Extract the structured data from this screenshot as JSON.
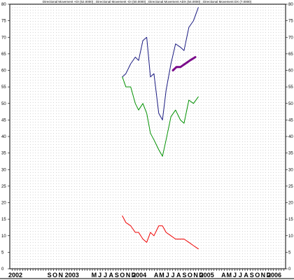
{
  "chart_data": {
    "type": "line",
    "legend": "Directional Movement +DI (52.0000) ; Directional Movement -DI (50.0000) ; Directional Movement ADX (54.0000) ; Directional Movement DX (7.0000)",
    "ylim": [
      0,
      80
    ],
    "y_ticks": [
      0,
      5,
      10,
      15,
      20,
      25,
      30,
      35,
      40,
      45,
      50,
      55,
      60,
      65,
      70,
      75,
      80
    ],
    "grid": "dotted vertical",
    "x_labels": [
      {
        "text": "2002",
        "x": "2002-03"
      },
      {
        "text": "S",
        "x": "2002-09"
      },
      {
        "text": "O",
        "x": "2002-10"
      },
      {
        "text": "N",
        "x": "2002-11"
      },
      {
        "text": "2003",
        "x": "2003-01"
      },
      {
        "text": "M",
        "x": "2003-05"
      },
      {
        "text": "J",
        "x": "2003-06"
      },
      {
        "text": "J",
        "x": "2003-07"
      },
      {
        "text": "A",
        "x": "2003-08"
      },
      {
        "text": "S",
        "x": "2003-09"
      },
      {
        "text": "O",
        "x": "2003-10"
      },
      {
        "text": "N",
        "x": "2003-11"
      },
      {
        "text": "D",
        "x": "2003-12"
      },
      {
        "text": "2004",
        "x": "2004-01"
      },
      {
        "text": "A",
        "x": "2004-04"
      },
      {
        "text": "M",
        "x": "2004-05"
      },
      {
        "text": "J",
        "x": "2004-06"
      },
      {
        "text": "J",
        "x": "2004-07"
      },
      {
        "text": "A",
        "x": "2004-08"
      },
      {
        "text": "S",
        "x": "2004-09"
      },
      {
        "text": "O",
        "x": "2004-10"
      },
      {
        "text": "N",
        "x": "2004-11"
      },
      {
        "text": "D",
        "x": "2004-12"
      },
      {
        "text": "2005",
        "x": "2005-01"
      },
      {
        "text": "A",
        "x": "2005-04"
      },
      {
        "text": "M",
        "x": "2005-05"
      },
      {
        "text": "J",
        "x": "2005-06"
      },
      {
        "text": "J",
        "x": "2005-07"
      },
      {
        "text": "A",
        "x": "2005-08"
      },
      {
        "text": "S",
        "x": "2005-09"
      },
      {
        "text": "O",
        "x": "2005-10"
      },
      {
        "text": "N",
        "x": "2005-11"
      },
      {
        "text": "D",
        "x": "2005-12"
      },
      {
        "text": "2006",
        "x": "2006-01"
      }
    ],
    "series": [
      {
        "color": "#1a1a80",
        "width": 1,
        "points": [
          [
            "2003-10-01",
            58
          ],
          [
            "2003-10-20",
            59
          ],
          [
            "2003-11-15",
            62
          ],
          [
            "2003-12-10",
            64
          ],
          [
            "2003-12-28",
            63
          ],
          [
            "2004-01-20",
            69
          ],
          [
            "2004-02-10",
            70
          ],
          [
            "2004-03-01",
            58
          ],
          [
            "2004-03-20",
            59
          ],
          [
            "2004-04-15",
            47
          ],
          [
            "2004-05-05",
            45
          ],
          [
            "2004-05-25",
            54
          ],
          [
            "2004-06-20",
            62
          ],
          [
            "2004-07-15",
            68
          ],
          [
            "2004-08-10",
            67
          ],
          [
            "2004-08-30",
            66
          ],
          [
            "2004-09-25",
            73
          ],
          [
            "2004-10-20",
            75
          ],
          [
            "2004-11-15",
            79
          ]
        ]
      },
      {
        "color": "#009000",
        "width": 1,
        "points": [
          [
            "2003-10-01",
            58
          ],
          [
            "2003-10-20",
            55
          ],
          [
            "2003-11-15",
            55
          ],
          [
            "2003-12-10",
            50
          ],
          [
            "2003-12-28",
            48
          ],
          [
            "2004-01-20",
            50
          ],
          [
            "2004-02-10",
            47
          ],
          [
            "2004-03-01",
            41
          ],
          [
            "2004-03-20",
            39
          ],
          [
            "2004-04-15",
            36
          ],
          [
            "2004-05-05",
            34
          ],
          [
            "2004-05-25",
            39
          ],
          [
            "2004-06-20",
            46
          ],
          [
            "2004-07-15",
            48
          ],
          [
            "2004-08-10",
            45
          ],
          [
            "2004-08-30",
            44
          ],
          [
            "2004-09-25",
            51
          ],
          [
            "2004-10-20",
            50
          ],
          [
            "2004-11-15",
            52
          ]
        ]
      },
      {
        "color": "#ee0000",
        "width": 1,
        "points": [
          [
            "2003-10-01",
            16
          ],
          [
            "2003-10-20",
            14
          ],
          [
            "2003-11-15",
            13
          ],
          [
            "2003-12-10",
            11
          ],
          [
            "2003-12-28",
            11
          ],
          [
            "2004-01-20",
            9
          ],
          [
            "2004-02-10",
            8
          ],
          [
            "2004-03-01",
            11
          ],
          [
            "2004-03-20",
            10
          ],
          [
            "2004-04-15",
            13
          ],
          [
            "2004-05-05",
            13
          ],
          [
            "2004-05-25",
            11
          ],
          [
            "2004-06-20",
            10
          ],
          [
            "2004-07-15",
            9
          ],
          [
            "2004-08-10",
            9
          ],
          [
            "2004-08-30",
            9
          ],
          [
            "2004-09-25",
            8
          ],
          [
            "2004-10-20",
            7
          ],
          [
            "2004-11-15",
            6
          ]
        ]
      },
      {
        "color": "#7a0a8a",
        "width": 3,
        "points": [
          [
            "2004-07-01",
            60
          ],
          [
            "2004-07-20",
            61
          ],
          [
            "2004-08-10",
            61
          ],
          [
            "2004-09-05",
            62
          ],
          [
            "2004-10-01",
            63
          ],
          [
            "2004-10-30",
            64
          ]
        ]
      }
    ]
  }
}
